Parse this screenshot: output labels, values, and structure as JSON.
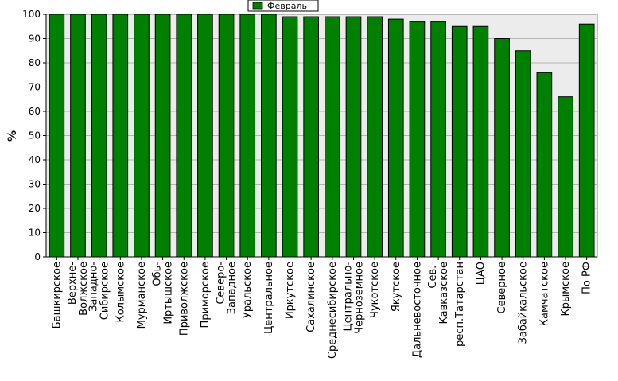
{
  "chart_data": {
    "type": "bar",
    "ylabel": "%",
    "ylim": [
      0,
      100
    ],
    "yticks": [
      0,
      10,
      20,
      30,
      40,
      50,
      60,
      70,
      80,
      90,
      100
    ],
    "grid": true,
    "legend_position": "top-center",
    "categories": [
      "Башкирское",
      "Верхне-\nВолжское",
      "Западно-\nСибирское",
      "Колымское",
      "Мурманское",
      "Обь-\nИртышское",
      "Приволжское",
      "Приморское",
      "Северо-\nЗападное",
      "Уральское",
      "Центральное",
      "Иркутское",
      "Сахалинское",
      "Среднесибирское",
      "Центрально-\nЧерноземное",
      "Чукотское",
      "Якутское",
      "Дальневосточное",
      "Сев.-\nКавказское",
      "респ.Татарстан",
      "ЦАО",
      "Северное",
      "Забайкальское",
      "Камчатское",
      "Крымское",
      "По РФ"
    ],
    "series": [
      {
        "name": "Февраль",
        "color": "#008000",
        "values": [
          100,
          100,
          100,
          100,
          100,
          100,
          100,
          100,
          100,
          100,
          100,
          99,
          99,
          99,
          99,
          99,
          98,
          97,
          97,
          95,
          95,
          90,
          85,
          76,
          66,
          96
        ]
      }
    ]
  },
  "colors": {
    "bar": "#008000",
    "plot_background": "#ececec",
    "grid": "#b4b4b4"
  }
}
